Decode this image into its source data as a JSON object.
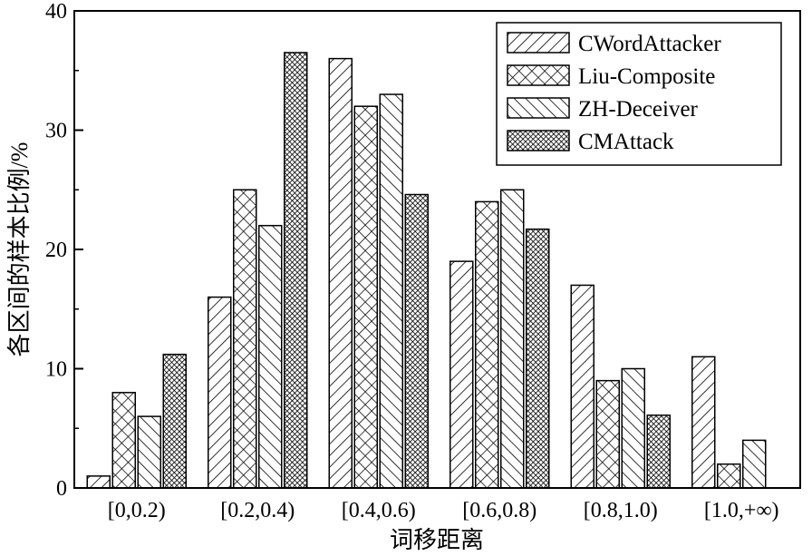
{
  "chart_data": {
    "type": "bar",
    "title": "",
    "xlabel": "词移距离",
    "ylabel": "各区间的样本比例/%",
    "ylim": [
      0,
      40
    ],
    "yticks": [
      "0",
      "10",
      "20",
      "30",
      "40"
    ],
    "categories": [
      "[0,0.2)",
      "[0.2,0.4)",
      "[0.4,0.6)",
      "[0.6,0.8)",
      "[0.8,1.0)",
      "[1.0,+∞)"
    ],
    "legend_position": "top-right",
    "grid": false,
    "series": [
      {
        "name": "CWordAttacker",
        "pattern": "diag-forward",
        "values": [
          1,
          16,
          36,
          19,
          17,
          11
        ]
      },
      {
        "name": "Liu-Composite",
        "pattern": "crosshatch",
        "values": [
          8,
          25,
          32,
          24,
          9,
          2
        ]
      },
      {
        "name": "ZH-Deceiver",
        "pattern": "diag-back",
        "values": [
          6,
          22,
          33,
          25,
          10,
          4
        ]
      },
      {
        "name": "CMAttack",
        "pattern": "dense-crosshatch",
        "values": [
          11.2,
          36.5,
          24.6,
          21.7,
          6.1,
          0
        ]
      }
    ]
  }
}
